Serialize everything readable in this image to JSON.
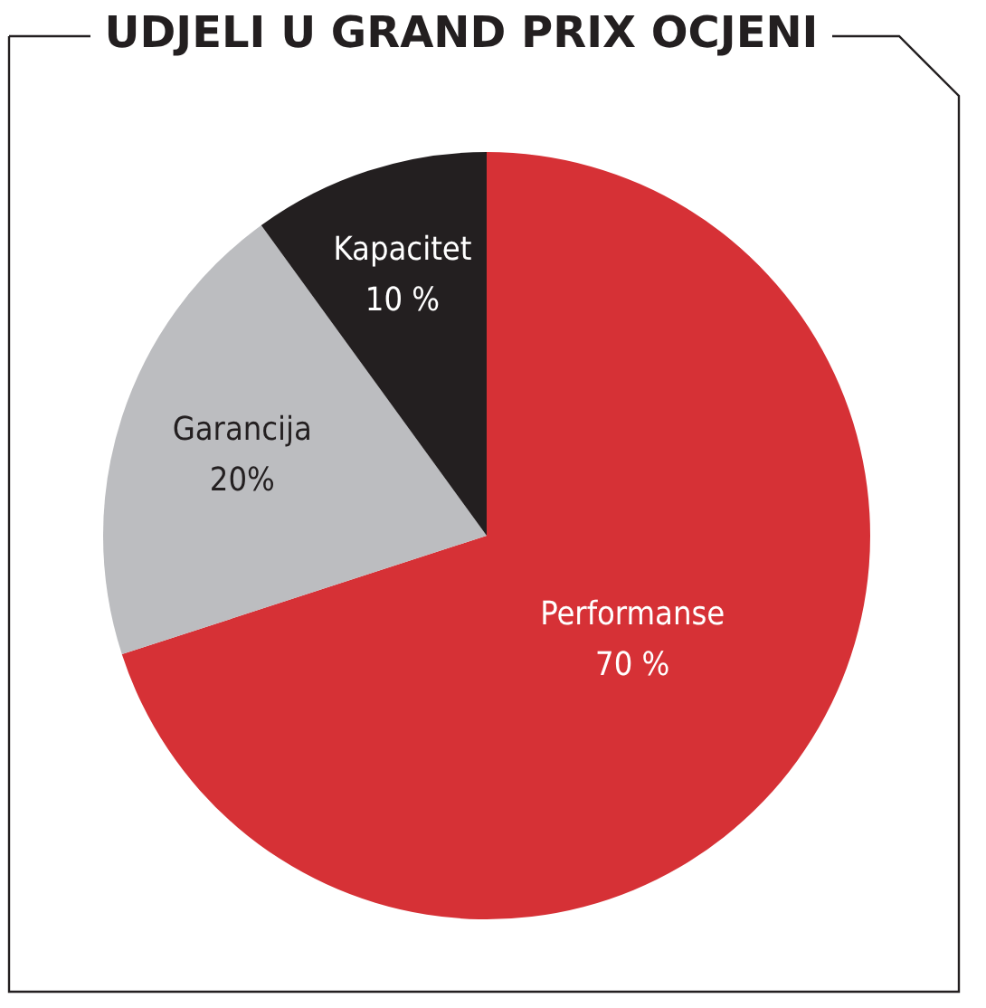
{
  "chart_data": {
    "type": "pie",
    "title": "UDJELI U GRAND PRIX OCJENI",
    "categories": [
      "Performanse",
      "Garancija",
      "Kapacitet"
    ],
    "values": [
      70,
      20,
      10
    ],
    "value_labels": [
      "70 %",
      "20%",
      "10 %"
    ],
    "colors": [
      "#d63136",
      "#bcbdc0",
      "#231f20"
    ],
    "legend": false
  }
}
